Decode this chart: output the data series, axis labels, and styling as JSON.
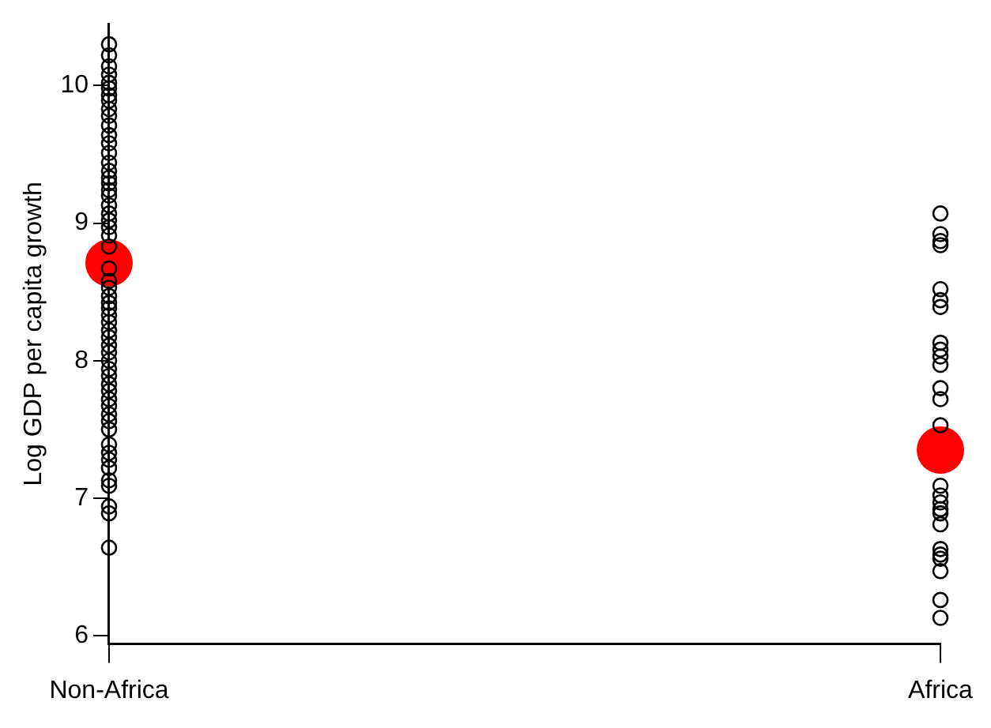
{
  "chart_data": {
    "type": "scatter",
    "ylabel": "Log GDP per capita growth",
    "categories": [
      "Non-Africa",
      "Africa"
    ],
    "ylim": [
      5.94,
      10.45
    ],
    "yticks": [
      6,
      7,
      8,
      9,
      10
    ],
    "grid": false,
    "legend": false,
    "marker": "circle",
    "series": [
      {
        "color": "#000000",
        "x": [
          "Non-Africa",
          "Non-Africa",
          "Non-Africa",
          "Non-Africa",
          "Non-Africa",
          "Non-Africa",
          "Non-Africa",
          "Non-Africa",
          "Non-Africa",
          "Non-Africa",
          "Non-Africa",
          "Non-Africa",
          "Non-Africa",
          "Non-Africa",
          "Non-Africa",
          "Non-Africa",
          "Non-Africa",
          "Non-Africa",
          "Non-Africa",
          "Non-Africa",
          "Non-Africa",
          "Non-Africa",
          "Non-Africa",
          "Non-Africa",
          "Non-Africa",
          "Non-Africa",
          "Non-Africa",
          "Non-Africa",
          "Non-Africa",
          "Non-Africa",
          "Non-Africa",
          "Non-Africa",
          "Non-Africa",
          "Non-Africa",
          "Non-Africa",
          "Non-Africa",
          "Non-Africa",
          "Non-Africa",
          "Non-Africa",
          "Non-Africa",
          "Non-Africa",
          "Non-Africa",
          "Non-Africa",
          "Non-Africa",
          "Non-Africa",
          "Non-Africa",
          "Non-Africa",
          "Non-Africa",
          "Non-Africa",
          "Non-Africa",
          "Non-Africa",
          "Non-Africa",
          "Non-Africa",
          "Non-Africa",
          "Non-Africa",
          "Non-Africa",
          "Non-Africa",
          "Africa",
          "Africa",
          "Africa",
          "Africa",
          "Africa",
          "Africa",
          "Africa",
          "Africa",
          "Africa",
          "Africa",
          "Africa",
          "Africa",
          "Africa",
          "Africa",
          "Africa",
          "Africa",
          "Africa",
          "Africa",
          "Africa",
          "Africa",
          "Africa",
          "Africa",
          "Africa",
          "Africa",
          "Africa",
          "Africa"
        ],
        "values": [
          10.3,
          10.22,
          10.14,
          10.08,
          10.02,
          9.98,
          9.93,
          9.89,
          9.83,
          9.78,
          9.71,
          9.64,
          9.58,
          9.51,
          9.44,
          9.38,
          9.33,
          9.29,
          9.24,
          9.2,
          9.13,
          9.07,
          9.02,
          8.97,
          8.91,
          8.83,
          8.67,
          8.58,
          8.53,
          8.47,
          8.42,
          8.38,
          8.33,
          8.28,
          8.22,
          8.17,
          8.11,
          8.06,
          8.0,
          7.94,
          7.89,
          7.83,
          7.78,
          7.72,
          7.67,
          7.61,
          7.56,
          7.5,
          7.39,
          7.33,
          7.28,
          7.22,
          7.13,
          7.09,
          6.94,
          6.89,
          6.64,
          9.07,
          8.92,
          8.87,
          8.84,
          8.52,
          8.44,
          8.39,
          8.13,
          8.08,
          8.03,
          7.97,
          7.8,
          7.72,
          7.53,
          7.09,
          7.02,
          6.97,
          6.92,
          6.89,
          6.81,
          6.63,
          6.59,
          6.56,
          6.47,
          6.26,
          6.13
        ]
      },
      {
        "color": "#ff0000",
        "x": [
          "Non-Africa",
          "Africa"
        ],
        "values": [
          8.71,
          7.35
        ]
      }
    ]
  }
}
